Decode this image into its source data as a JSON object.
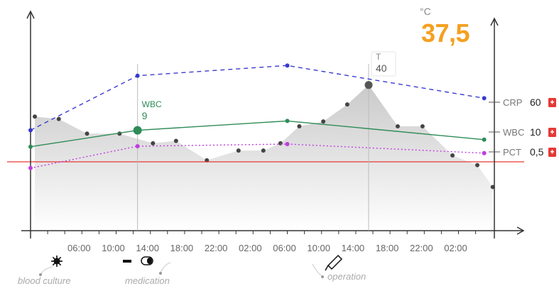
{
  "temperature": {
    "unit": "°C",
    "value": "37,5",
    "color": "#f4a020"
  },
  "chart_data": {
    "type": "line",
    "x_ticks": [
      "06:00",
      "10:00",
      "14:00",
      "18:00",
      "22:00",
      "02:00",
      "06:00",
      "10:00",
      "14:00",
      "18:00",
      "22:00",
      "02:00"
    ],
    "x_tick_hours": [
      6,
      10,
      14,
      18,
      22,
      26,
      30,
      34,
      38,
      42,
      46,
      50
    ],
    "temperature_area": {
      "hours": [
        0.5,
        3.3,
        6.6,
        10.4,
        14.3,
        17,
        20.6,
        24.3,
        27.2,
        29.2,
        31.4,
        34.2,
        37,
        39.5,
        42.9,
        45.8,
        49.3,
        52.2,
        54
      ],
      "values": [
        38.7,
        38.6,
        38.0,
        38.0,
        37.6,
        37.7,
        36.9,
        37.3,
        37.3,
        37.6,
        38.3,
        38.5,
        39.2,
        40.0,
        38.3,
        38.3,
        37.1,
        36.7,
        35.8
      ]
    },
    "series": [
      {
        "name": "CRP",
        "hours": [
          0,
          12.5,
          30,
          53
        ],
        "values": [
          38,
          118,
          133,
          85
        ],
        "color": "#3a3ad0",
        "style": "dashed"
      },
      {
        "name": "WBC",
        "hours": [
          0,
          12.5,
          30,
          53
        ],
        "values": [
          5.5,
          9,
          11,
          7
        ],
        "color": "#2e8b57",
        "style": "solid"
      },
      {
        "name": "PCT",
        "hours": [
          0,
          12.5,
          30,
          53
        ],
        "values": [
          -2.5,
          1.6,
          2.0,
          0.3
        ],
        "color": "#c03ce0",
        "style": "dotted"
      }
    ],
    "markers": [
      {
        "label": "WBC",
        "value": "9",
        "hour": 12.5,
        "color": "#2e8b57"
      },
      {
        "label": "T",
        "value": "40",
        "hour": 39.5,
        "color": "#888888"
      }
    ],
    "right_legend": [
      {
        "name": "CRP",
        "value": "60"
      },
      {
        "name": "WBC",
        "value": "10"
      },
      {
        "name": "PCT",
        "value": "0,5"
      }
    ],
    "threshold_color": "#e53935",
    "events": [
      {
        "label": "blood culture",
        "icon": "microbe-icon",
        "hour": 2.5
      },
      {
        "label": "medication",
        "icon": "pill-icon",
        "hour": 13.5
      },
      {
        "label": "operation",
        "icon": "scalpel-icon",
        "hour": 33
      }
    ]
  }
}
